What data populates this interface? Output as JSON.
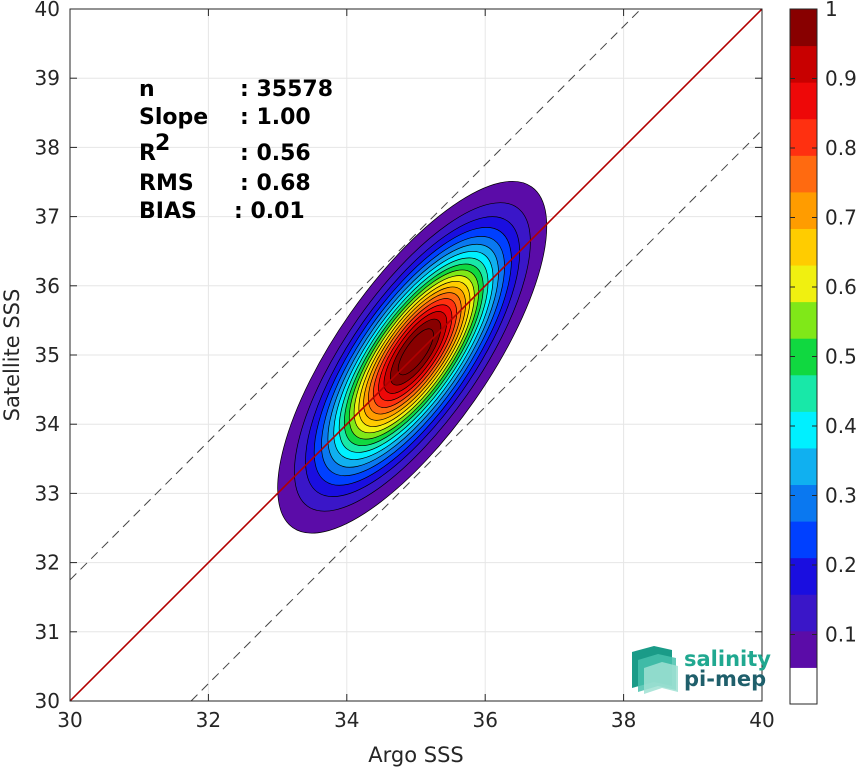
{
  "chart_data": {
    "type": "density-contour-scatter",
    "xlabel": "Argo SSS",
    "ylabel": "Satellite SSS",
    "xlim": [
      30,
      40
    ],
    "ylim": [
      30,
      40
    ],
    "xticks": [
      30,
      32,
      34,
      36,
      38,
      40
    ],
    "yticks": [
      30,
      31,
      32,
      33,
      34,
      35,
      36,
      37,
      38,
      39,
      40
    ],
    "grid": true,
    "one_to_one_line": {
      "color": "#b30000"
    },
    "bounds_offset": 1.75,
    "density_center": {
      "x": 35.0,
      "y": 35.05
    },
    "contour_levels": [
      0.05,
      0.1,
      0.15,
      0.2,
      0.25,
      0.3,
      0.35,
      0.4,
      0.45,
      0.5,
      0.55,
      0.6,
      0.65,
      0.7,
      0.75,
      0.8,
      0.85,
      0.9,
      0.95
    ],
    "stats": [
      {
        "label": "n",
        "value": ": 35578"
      },
      {
        "label": "Slope",
        "value": ": 1.00"
      },
      {
        "label": "R",
        "value": ": 0.56",
        "superscript": "2"
      },
      {
        "label": "RMS",
        "value": ": 0.68"
      },
      {
        "label": "BIAS",
        "value": ": 0.01"
      }
    ],
    "colorbar": {
      "min": 0,
      "max": 1,
      "ticks": [
        0.1,
        0.2,
        0.3,
        0.4,
        0.5,
        0.6,
        0.7,
        0.8,
        0.9,
        1
      ],
      "colors": [
        "#ffffff",
        "#5b0ca8",
        "#3a16c8",
        "#1a0ee0",
        "#0040ff",
        "#0a78f0",
        "#10b0f0",
        "#00f0ff",
        "#18e8a8",
        "#10d840",
        "#80e818",
        "#f0f010",
        "#ffcc00",
        "#ff9c00",
        "#ff6a10",
        "#ff3010",
        "#ee0808",
        "#c80000",
        "#880000"
      ]
    }
  },
  "logo": {
    "line1": "salinity",
    "line2": "pi-mep"
  }
}
